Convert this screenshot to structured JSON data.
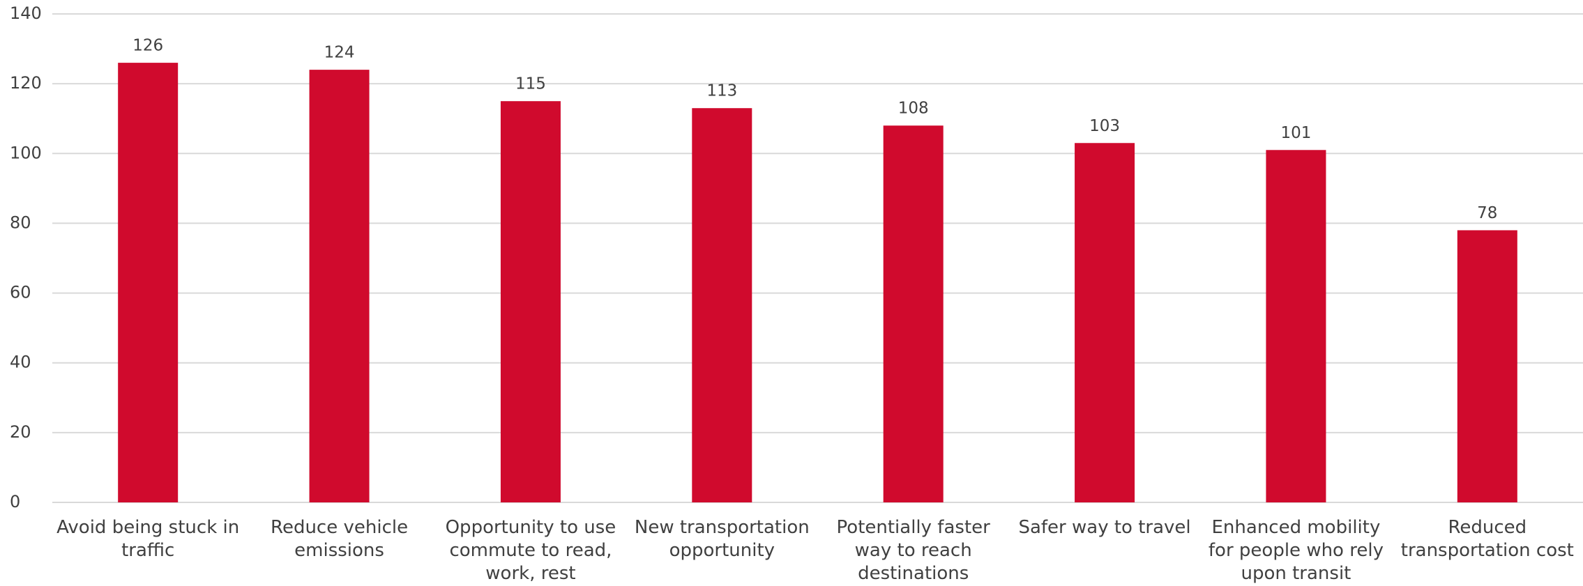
{
  "chart_data": {
    "type": "bar",
    "categories": [
      "Avoid being stuck in traffic",
      "Reduce vehicle emissions",
      "Opportunity to use commute to read, work, rest",
      "New transportation opportunity",
      "Potentially faster way to reach destinations",
      "Safer way to travel",
      "Enhanced mobility for people who rely upon transit",
      "Reduced transportation cost"
    ],
    "values": [
      126,
      124,
      115,
      113,
      108,
      103,
      101,
      78
    ],
    "color": "#d00a2d",
    "ylim": [
      0,
      140
    ],
    "yticks": [
      0,
      20,
      40,
      60,
      80,
      100,
      120,
      140
    ],
    "grid": true
  }
}
